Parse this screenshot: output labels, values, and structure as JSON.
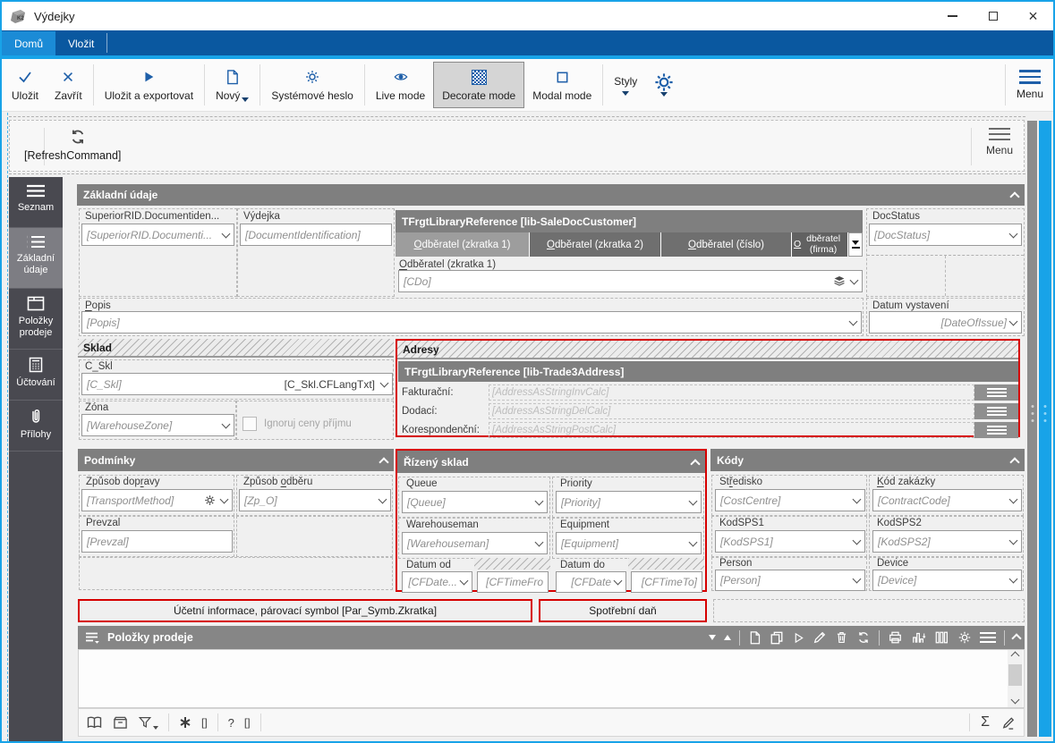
{
  "window": {
    "title": "Výdejky",
    "close_glyph": "×"
  },
  "ribbon": {
    "tabs": [
      {
        "label": "Domů",
        "active": true
      },
      {
        "label": "Vložit",
        "active": false
      }
    ]
  },
  "toolbar": {
    "save": "Uložit",
    "close": "Zavřít",
    "save_export": "Uložit a exportovat",
    "new": "Nový",
    "sys_password": "Systémové heslo",
    "live_mode": "Live mode",
    "decorate_mode": "Decorate mode",
    "modal_mode": "Modal mode",
    "styles": "Styly",
    "menu": "Menu"
  },
  "refresh_bar": {
    "command": "[RefreshCommand]",
    "menu": "Menu"
  },
  "sidebar": {
    "items": [
      {
        "label": "Seznam"
      },
      {
        "label": "Základní údaje"
      },
      {
        "label": "Položky prodeje"
      },
      {
        "label": "Účtování"
      },
      {
        "label": "Přílohy"
      }
    ]
  },
  "form": {
    "title": "Základní údaje",
    "superior": {
      "label": "SuperiorRID.Documentiden...",
      "value": "[SuperiorRID.Documenti..."
    },
    "vydejka": {
      "label": "Výdejka",
      "value": "[DocumentIdentification]"
    },
    "customer_ref": {
      "title": "TFrgtLibraryReference [lib-SaleDocCustomer]",
      "tabs": [
        {
          "label": "Odběratel (zkratka 1)",
          "active": true
        },
        {
          "label": "Odběratel (zkratka 2)",
          "active": false
        },
        {
          "label": "Odběratel (číslo)",
          "active": false
        },
        {
          "label": "Odběratel (firma)",
          "active": false
        }
      ],
      "field_label": "Odběratel (zkratka 1)",
      "field_value": "[CDo]"
    },
    "docstatus": {
      "label": "DocStatus",
      "value": "[DocStatus]"
    },
    "popis": {
      "label": "Popis",
      "value": "[Popis]"
    },
    "datum_vystaveni": {
      "label": "Datum vystavení",
      "value": "[DateOfIssue]"
    },
    "sklad": {
      "title": "Sklad",
      "c_skl": {
        "label": "C_Skl",
        "value": "[C_Skl]",
        "value2": "[C_Skl.CFLangTxt]"
      },
      "zona": {
        "label": "Zóna",
        "value": "[WarehouseZone]"
      },
      "checkbox_label": "Ignoruj ceny příjmu"
    },
    "adresy": {
      "title": "Adresy",
      "ref_title": "TFrgtLibraryReference [lib-Trade3Address]",
      "rows": [
        {
          "label": "Fakturační:",
          "value": "[AddressAsStringInvCalc]"
        },
        {
          "label": "Dodací:",
          "value": "[AddressAsStringDelCalc]"
        },
        {
          "label": "Korespondenční:",
          "value": "[AddressAsStringPostCalc]"
        }
      ]
    },
    "podminky": {
      "title": "Podmínky",
      "zpusob_dopravy": {
        "label": "Způsob dopravy",
        "value": "[TransportMethod]"
      },
      "zpusob_odberu": {
        "label": "Způsob odběru",
        "value": "[Zp_O]"
      },
      "prevzal": {
        "label": "Prevzal",
        "value": "[Prevzal]"
      }
    },
    "rizeny_sklad": {
      "title": "Řízený sklad",
      "queue": {
        "label": "Queue",
        "value": "[Queue]"
      },
      "priority": {
        "label": "Priority",
        "value": "[Priority]"
      },
      "warehouseman": {
        "label": "Warehouseman",
        "value": "[Warehouseman]"
      },
      "equipment": {
        "label": "Equipment",
        "value": "[Equipment]"
      },
      "datum_od": {
        "label": "Datum od",
        "date": "[CFDate...",
        "time": "[CFTimeFro"
      },
      "datum_do": {
        "label": "Datum do",
        "date": "[CFDate",
        "time": "[CFTimeTo]"
      }
    },
    "kody": {
      "title": "Kódy",
      "stredisko": {
        "label": "Středisko",
        "value": "[CostCentre]"
      },
      "kod_zakazky": {
        "label": "Kód zakázky",
        "value": "[ContractCode]"
      },
      "kodsps1": {
        "label": "KodSPS1",
        "value": "[KodSPS1]"
      },
      "kodsps2": {
        "label": "KodSPS2",
        "value": "[KodSPS2]"
      },
      "person": {
        "label": "Person",
        "value": "[Person]"
      },
      "device": {
        "label": "Device",
        "value": "[Device]"
      }
    },
    "accounting_button": "Účetní informace, párovací symbol [Par_Symb.Zkratka]",
    "excise_button": "Spotřební daň"
  },
  "items_panel": {
    "title": "Položky prodeje"
  },
  "statusbar": {
    "bracket1": "[]",
    "question": "?",
    "bracket2": "[]",
    "sum": "Σ"
  }
}
